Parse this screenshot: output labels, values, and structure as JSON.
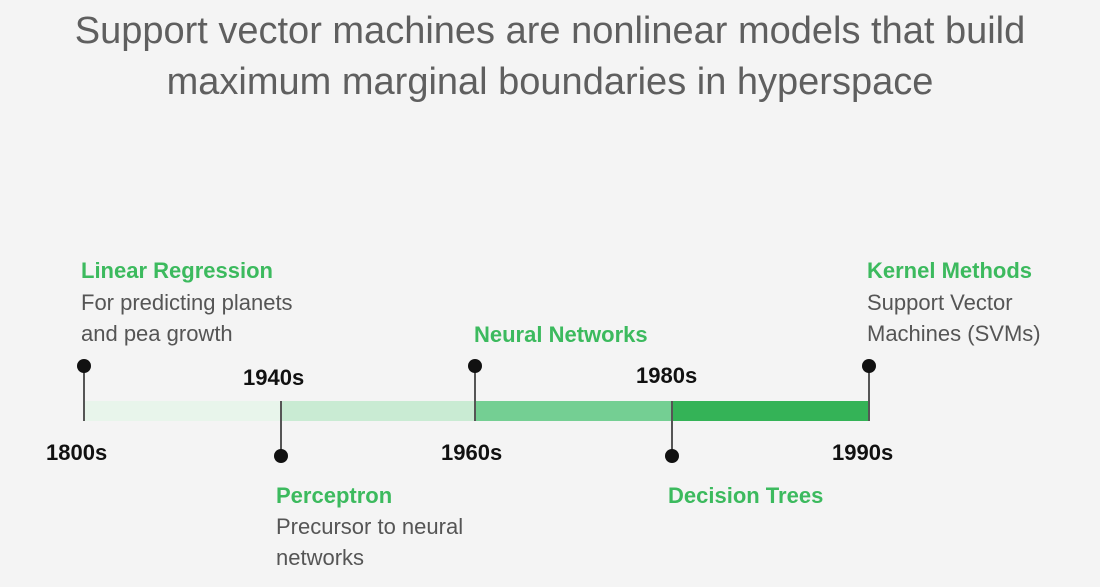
{
  "title": {
    "line1": "Support vector machines are nonlinear models that build",
    "line2": "maximum marginal boundaries in hyperspace"
  },
  "colors": {
    "segment_1": "#e8f5eb",
    "segment_2": "#c9ebd3",
    "segment_3": "#74cf93",
    "segment_4": "#34b357",
    "milestone_title": "#3cba5e"
  },
  "timeline": {
    "eras": [
      "1800s",
      "1940s",
      "1960s",
      "1980s",
      "1990s"
    ],
    "milestones": [
      {
        "title": "Linear Regression",
        "description": "For predicting planets\nand pea growth"
      },
      {
        "title": "Perceptron",
        "description": "Precursor to neural\nnetworks"
      },
      {
        "title": "Neural Networks",
        "description": ""
      },
      {
        "title": "Decision Trees",
        "description": ""
      },
      {
        "title": "Kernel Methods",
        "description": "Support Vector\nMachines (SVMs)"
      }
    ]
  }
}
